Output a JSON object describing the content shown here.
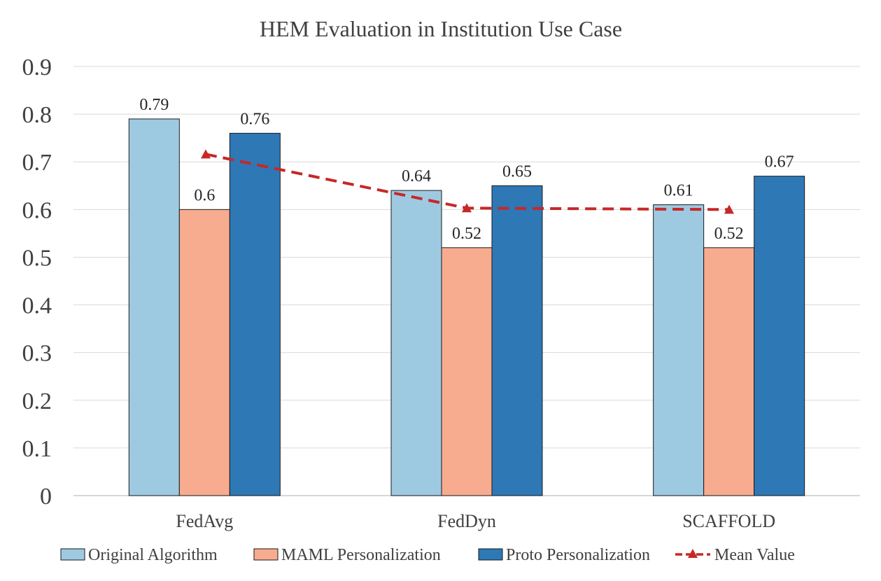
{
  "chart_data": {
    "type": "bar",
    "title": "HEM Evaluation in Institution Use Case",
    "categories": [
      "FedAvg",
      "FedDyn",
      "SCAFFOLD"
    ],
    "ylim": [
      0,
      0.9
    ],
    "yticks": [
      "0",
      "0.1",
      "0.2",
      "0.3",
      "0.4",
      "0.5",
      "0.6",
      "0.7",
      "0.8",
      "0.9"
    ],
    "grid": true,
    "legend_position": "bottom",
    "series": [
      {
        "name": "Original Algorithm",
        "values": [
          0.79,
          0.64,
          0.61
        ],
        "labels": [
          "0.79",
          "0.64",
          "0.61"
        ],
        "color": "#9ecae1"
      },
      {
        "name": "MAML Personalization",
        "values": [
          0.6,
          0.52,
          0.52
        ],
        "labels": [
          "0.6",
          "0.52",
          "0.52"
        ],
        "color": "#f7ac8f"
      },
      {
        "name": "Proto Personalization",
        "values": [
          0.76,
          0.65,
          0.67
        ],
        "labels": [
          "0.76",
          "0.65",
          "0.67"
        ],
        "color": "#2e78b6"
      }
    ],
    "line_series": {
      "name": "Mean Value",
      "values": [
        0.716,
        0.603,
        0.6
      ],
      "color": "#c62828",
      "style": "dashed",
      "marker": "triangle"
    }
  }
}
